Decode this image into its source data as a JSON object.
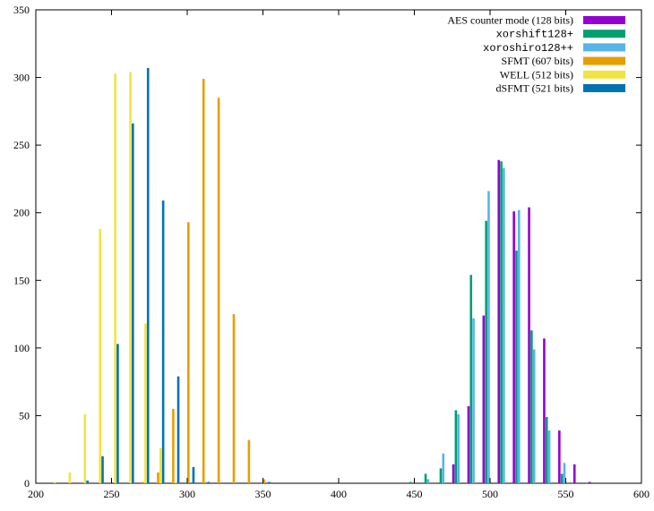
{
  "chart_data": {
    "type": "bar",
    "title": "",
    "xlabel": "",
    "ylabel": "",
    "xlim": [
      200,
      600
    ],
    "ylim": [
      0,
      350
    ],
    "x_ticks": [
      200,
      250,
      300,
      350,
      400,
      450,
      500,
      550,
      600
    ],
    "y_ticks": [
      0,
      50,
      100,
      150,
      200,
      250,
      300,
      350
    ],
    "grid": false,
    "legend_position": "top-right",
    "bin_width": 10,
    "series": [
      {
        "name": "AES counter mode (128 bits)",
        "color": "#9400d3",
        "mono": false,
        "points": [
          [
            480,
            14
          ],
          [
            490,
            57
          ],
          [
            500,
            124
          ],
          [
            510,
            239
          ],
          [
            520,
            201
          ],
          [
            530,
            204
          ],
          [
            540,
            107
          ],
          [
            550,
            39
          ],
          [
            560,
            14
          ],
          [
            570,
            1
          ]
        ]
      },
      {
        "name": "xorshift128+",
        "color": "#009e73",
        "mono": true,
        "points": [
          [
            450,
            1
          ],
          [
            460,
            7
          ],
          [
            470,
            11
          ],
          [
            480,
            54
          ],
          [
            490,
            154
          ],
          [
            500,
            194
          ],
          [
            510,
            238
          ],
          [
            520,
            172
          ],
          [
            530,
            113
          ],
          [
            540,
            49
          ],
          [
            550,
            7
          ]
        ]
      },
      {
        "name": "xoroshiro128++",
        "color": "#56b4e9",
        "mono": true,
        "points": [
          [
            460,
            3
          ],
          [
            470,
            22
          ],
          [
            480,
            51
          ],
          [
            490,
            122
          ],
          [
            500,
            216
          ],
          [
            510,
            233
          ],
          [
            520,
            202
          ],
          [
            530,
            99
          ],
          [
            540,
            39
          ],
          [
            550,
            15
          ]
        ]
      },
      {
        "name": "SFMT (607 bits)",
        "color": "#e69f00",
        "mono": false,
        "points": [
          [
            270,
            1
          ],
          [
            280,
            8
          ],
          [
            290,
            55
          ],
          [
            300,
            193
          ],
          [
            310,
            299
          ],
          [
            320,
            285
          ],
          [
            330,
            125
          ],
          [
            340,
            32
          ],
          [
            350,
            3
          ]
        ]
      },
      {
        "name": "WELL (512 bits)",
        "color": "#f0e442",
        "mono": false,
        "points": [
          [
            210,
            1
          ],
          [
            220,
            8
          ],
          [
            230,
            51
          ],
          [
            240,
            188
          ],
          [
            250,
            303
          ],
          [
            260,
            304
          ],
          [
            270,
            118
          ],
          [
            280,
            26
          ],
          [
            290,
            1
          ]
        ]
      },
      {
        "name": "dSFMT (521 bits)",
        "color": "#0072b2",
        "mono": false,
        "points": [
          [
            230,
            2
          ],
          [
            240,
            20
          ],
          [
            250,
            103
          ],
          [
            260,
            266
          ],
          [
            270,
            307
          ],
          [
            280,
            209
          ],
          [
            290,
            79
          ],
          [
            300,
            12
          ],
          [
            310,
            1
          ],
          [
            350,
            1
          ]
        ]
      }
    ]
  }
}
